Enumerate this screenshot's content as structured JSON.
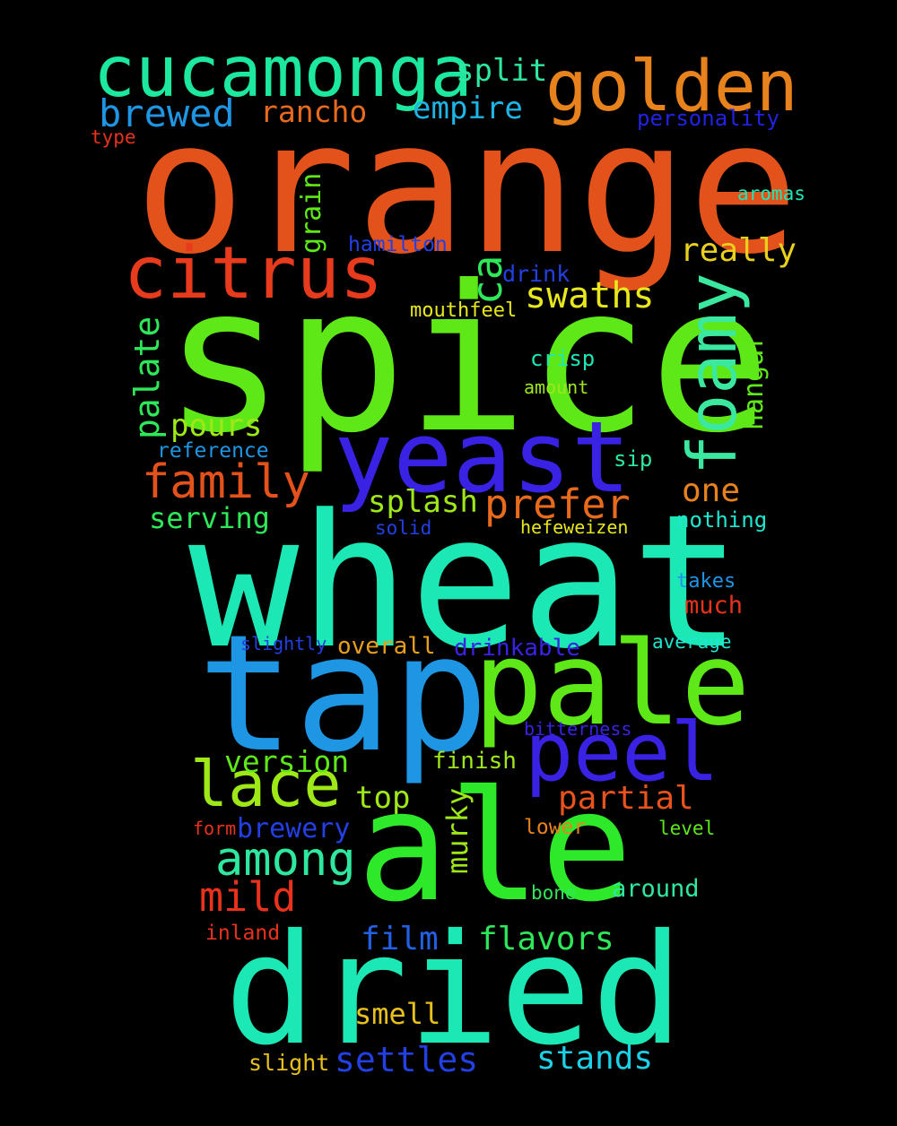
{
  "words": [
    {
      "text": "orange",
      "color": "#e4521b"
    },
    {
      "text": "spice",
      "color": "#5ee818"
    },
    {
      "text": "wheat",
      "color": "#1ce8b5"
    },
    {
      "text": "tap",
      "color": "#1e96e4"
    },
    {
      "text": "pale",
      "color": "#5ee818"
    },
    {
      "text": "ale",
      "color": "#2ee82a"
    },
    {
      "text": "dried",
      "color": "#1ce8b5"
    },
    {
      "text": "yeast",
      "color": "#3a22e4"
    },
    {
      "text": "cucamonga",
      "color": "#1ce8a0"
    },
    {
      "text": "golden",
      "color": "#e8821c"
    },
    {
      "text": "citrus",
      "color": "#e83a1c"
    },
    {
      "text": "foamy",
      "color": "#3ae8a0"
    },
    {
      "text": "peel",
      "color": "#3a22e4"
    },
    {
      "text": "lace",
      "color": "#9ee818"
    },
    {
      "text": "family",
      "color": "#e4521b"
    },
    {
      "text": "among",
      "color": "#2ee8a0"
    },
    {
      "text": "mild",
      "color": "#e8321c"
    },
    {
      "text": "prefer",
      "color": "#e86a1c"
    },
    {
      "text": "swaths",
      "color": "#e8e81c"
    },
    {
      "text": "ca",
      "color": "#2ee85a"
    },
    {
      "text": "really",
      "color": "#e8d01c"
    },
    {
      "text": "brewed",
      "color": "#1e96e4"
    },
    {
      "text": "rancho",
      "color": "#e86a1c"
    },
    {
      "text": "empire",
      "color": "#1eb4e4"
    },
    {
      "text": "split",
      "color": "#2ee8a0"
    },
    {
      "text": "personality",
      "color": "#2222e4"
    },
    {
      "text": "type",
      "color": "#e8321c"
    },
    {
      "text": "aromas",
      "color": "#1ce8b5"
    },
    {
      "text": "grain",
      "color": "#5ee818"
    },
    {
      "text": "hamilton",
      "color": "#2240e4"
    },
    {
      "text": "drink",
      "color": "#2240e4"
    },
    {
      "text": "mouthfeel",
      "color": "#e8e81c"
    },
    {
      "text": "palate",
      "color": "#2ee85a"
    },
    {
      "text": "hangar",
      "color": "#5ee818"
    },
    {
      "text": "crisp",
      "color": "#1ce8b5"
    },
    {
      "text": "amount",
      "color": "#9ee818"
    },
    {
      "text": "pours",
      "color": "#9ee818"
    },
    {
      "text": "reference",
      "color": "#1e96e4"
    },
    {
      "text": "sip",
      "color": "#2ee8a0"
    },
    {
      "text": "one",
      "color": "#e8821c"
    },
    {
      "text": "serving",
      "color": "#2ee85a"
    },
    {
      "text": "splash",
      "color": "#9ee818"
    },
    {
      "text": "solid",
      "color": "#2240e4"
    },
    {
      "text": "hefeweizen",
      "color": "#e8e81c"
    },
    {
      "text": "nothing",
      "color": "#1ce8d0"
    },
    {
      "text": "takes",
      "color": "#1e96e4"
    },
    {
      "text": "much",
      "color": "#e8321c"
    },
    {
      "text": "slightly",
      "color": "#2240e4"
    },
    {
      "text": "overall",
      "color": "#e8a01c"
    },
    {
      "text": "drinkable",
      "color": "#3a22e4"
    },
    {
      "text": "average",
      "color": "#1ce8d0"
    },
    {
      "text": "bitterness",
      "color": "#3a22e4"
    },
    {
      "text": "version",
      "color": "#5ee818"
    },
    {
      "text": "finish",
      "color": "#9ee818"
    },
    {
      "text": "top",
      "color": "#9ee818"
    },
    {
      "text": "partial",
      "color": "#e8521c"
    },
    {
      "text": "murky",
      "color": "#9ee818"
    },
    {
      "text": "brewery",
      "color": "#2240e4"
    },
    {
      "text": "form",
      "color": "#e8321c"
    },
    {
      "text": "lower",
      "color": "#e8821c"
    },
    {
      "text": "level",
      "color": "#5ee818"
    },
    {
      "text": "bone",
      "color": "#2ee85a"
    },
    {
      "text": "around",
      "color": "#2ee8a0"
    },
    {
      "text": "inland",
      "color": "#e8321c"
    },
    {
      "text": "film",
      "color": "#2260e4"
    },
    {
      "text": "flavors",
      "color": "#2ee85a"
    },
    {
      "text": "smell",
      "color": "#e8c01c"
    },
    {
      "text": "settles",
      "color": "#2240e4"
    },
    {
      "text": "stands",
      "color": "#1cd0e8"
    },
    {
      "text": "slight",
      "color": "#e8c01c"
    }
  ]
}
